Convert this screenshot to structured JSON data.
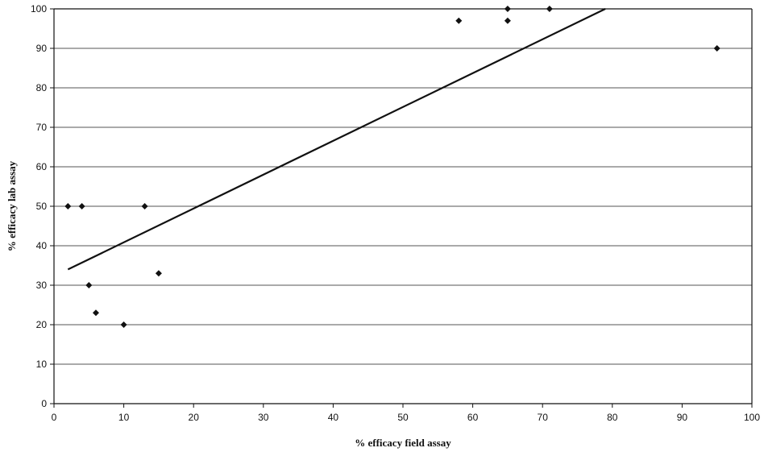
{
  "chart_data": {
    "type": "scatter",
    "title": "",
    "xlabel": "% efficacy field assay",
    "ylabel": "% efficacy lab assay",
    "xlim": [
      0,
      100
    ],
    "ylim": [
      0,
      100
    ],
    "x_ticks": [
      "0",
      "10",
      "20",
      "30",
      "40",
      "50",
      "60",
      "70",
      "80",
      "90",
      "100"
    ],
    "y_ticks": [
      "0",
      "10",
      "20",
      "30",
      "40",
      "50",
      "60",
      "70",
      "80",
      "90",
      "100"
    ],
    "grid": "horizontal",
    "legend": "none",
    "series": [
      {
        "points": [
          {
            "x": 2,
            "y": 50
          },
          {
            "x": 4,
            "y": 50
          },
          {
            "x": 5,
            "y": 30
          },
          {
            "x": 6,
            "y": 23
          },
          {
            "x": 10,
            "y": 20
          },
          {
            "x": 13,
            "y": 50
          },
          {
            "x": 15,
            "y": 33
          },
          {
            "x": 58,
            "y": 97
          },
          {
            "x": 65,
            "y": 100
          },
          {
            "x": 65,
            "y": 97
          },
          {
            "x": 71,
            "y": 100
          },
          {
            "x": 95,
            "y": 90
          }
        ],
        "marker": "diamond",
        "color": "#111111"
      }
    ],
    "trendline": {
      "type": "linear",
      "color": "#111111",
      "points": [
        {
          "x": 2,
          "y": 34
        },
        {
          "x": 79,
          "y": 100
        }
      ]
    }
  }
}
